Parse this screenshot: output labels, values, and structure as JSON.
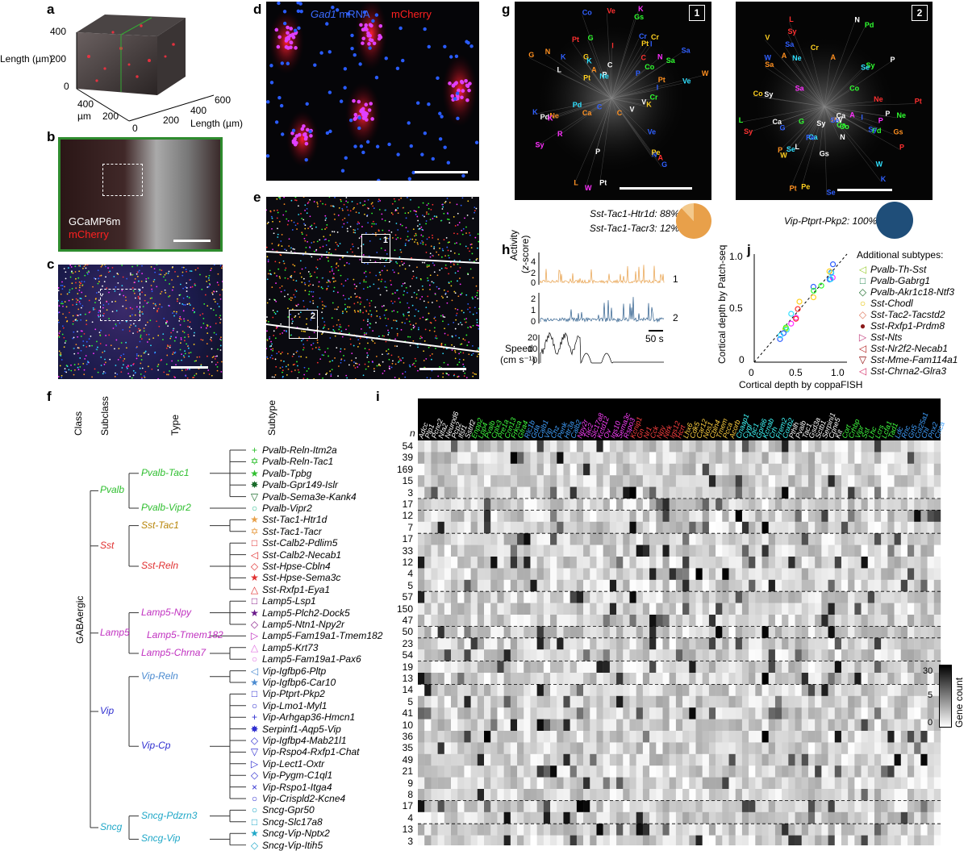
{
  "panels": {
    "a": {
      "label": "a",
      "y_axis": "Length (µm)",
      "y_ticks": [
        "400",
        "200",
        "0"
      ],
      "depth_ticks": [
        "400",
        "200",
        "0"
      ],
      "depth_unit": "µm",
      "x_ticks": [
        "200",
        "400",
        "600"
      ],
      "x_axis": "Length (µm)"
    },
    "b": {
      "label": "b",
      "legend_1": "GCaMP6m",
      "legend_2": "mCherry"
    },
    "c": {
      "label": "c"
    },
    "d": {
      "label": "d",
      "legend_1": "Gad1 mRNA",
      "legend_1_gene": "Gad1",
      "legend_1_rest": " mRNA",
      "legend_2": "mCherry"
    },
    "e": {
      "label": "e",
      "box_1": "1",
      "box_2": "2"
    },
    "g": {
      "label": "g",
      "box_1": "1",
      "box_2": "2",
      "caption_1a": "Sst-Tac1-Htr1d: 88%",
      "caption_1b": "Sst-Tac1-Tacr3: 12%",
      "caption_2": "Vip-Ptprt-Pkp2: 100%",
      "pie_1": {
        "fractions": [
          0.88,
          0.12
        ],
        "colors": [
          "#e8a04a",
          "#f3c98c"
        ]
      },
      "pie_2": {
        "fractions": [
          1.0
        ],
        "colors": [
          "#1f4e79"
        ]
      }
    },
    "h": {
      "label": "h",
      "ylabel_activity": "Activity",
      "ylabel_activity_unit": "(z-score)",
      "ylabel_speed": "Speed",
      "ylabel_speed_unit": "(cm s⁻¹)",
      "trace1_ticks": [
        "4",
        "2",
        "0"
      ],
      "trace2_ticks": [
        "2",
        "1",
        "0"
      ],
      "speed_ticks": [
        "20",
        "10",
        "0"
      ],
      "trace1_id": "1",
      "trace2_id": "2",
      "scalebar": "50 s",
      "trace1_color": "#e8a04a",
      "trace2_color": "#2a5b8a"
    },
    "j": {
      "label": "j",
      "xlabel": "Cortical depth by coppaFISH",
      "ylabel": "Cortical depth by Patch-seq",
      "x_ticks": [
        "0",
        "0.5",
        "1.0"
      ],
      "y_ticks": [
        "1.0",
        "0.5",
        "0"
      ],
      "legend_title": "Additional subtypes:",
      "legend": [
        {
          "marker": "◁",
          "color": "#9acd32",
          "name": "Pvalb-Th-Sst"
        },
        {
          "marker": "□",
          "color": "#2e8b57",
          "name": "Pvalb-Gabrg1"
        },
        {
          "marker": "◇",
          "color": "#1a6b2a",
          "name": "Pvalb-Akr1c18-Ntf3"
        },
        {
          "marker": "○",
          "color": "#e6c200",
          "name": "Sst-Chodl"
        },
        {
          "marker": "◇",
          "color": "#e07a5f",
          "name": "Sst-Tac2-Tacstd2"
        },
        {
          "marker": "●",
          "color": "#8b1a1a",
          "name": "Sst-Rxfp1-Prdm8"
        },
        {
          "marker": "▷",
          "color": "#c0397a",
          "name": "Sst-Nts"
        },
        {
          "marker": "◁",
          "color": "#b22222",
          "name": "Sst-Nr2f2-Necab1"
        },
        {
          "marker": "▽",
          "color": "#8b0000",
          "name": "Sst-Mme-Fam114a1"
        },
        {
          "marker": "◁",
          "color": "#d6336c",
          "name": "Sst-Chrna2-Glra3"
        }
      ]
    },
    "f": {
      "label": "f",
      "col_class": "Class",
      "col_subclass": "Subclass",
      "col_type": "Type",
      "col_subtype": "Subtype",
      "class_name": "GABAergic",
      "subclasses": [
        {
          "name": "Pvalb",
          "color": "#2fbf2f"
        },
        {
          "name": "Sst",
          "color": "#e03030"
        },
        {
          "name": "Lamp5",
          "color": "#c030c0"
        },
        {
          "name": "Vip",
          "color": "#3030d0"
        },
        {
          "name": "Sncg",
          "color": "#20a8c8"
        }
      ],
      "types": [
        {
          "name": "Pvalb-Tac1",
          "color": "#2fbf2f"
        },
        {
          "name": "Pvalb-Vipr2",
          "color": "#2fbf2f"
        },
        {
          "name": "Sst-Tac1",
          "color": "#b8860b"
        },
        {
          "name": "Sst-Reln",
          "color": "#e03030"
        },
        {
          "name": "Lamp5-Npy",
          "color": "#c030c0"
        },
        {
          "name": "Lamp5-Tmem182",
          "color": "#c030c0"
        },
        {
          "name": "Lamp5-Chrna7",
          "color": "#c030c0"
        },
        {
          "name": "Vip-Reln",
          "color": "#4a8ad0"
        },
        {
          "name": "Vip-Cp",
          "color": "#3030d0"
        },
        {
          "name": "Sncg-Pdzrn3",
          "color": "#20a8c8"
        },
        {
          "name": "Sncg-Vip",
          "color": "#20a8c8"
        }
      ],
      "subtypes": [
        {
          "marker": "+",
          "color": "#2fbf2f",
          "name": "Pvalb-Reln-Itm2a",
          "n": "54"
        },
        {
          "marker": "✡",
          "color": "#2fbf2f",
          "name": "Pvalb-Reln-Tac1",
          "n": "39"
        },
        {
          "marker": "★",
          "color": "#2fbf2f",
          "name": "Pvalb-Tpbg",
          "n": "169"
        },
        {
          "marker": "✸",
          "color": "#1a6b2a",
          "name": "Pvalb-Gpr149-Islr",
          "n": "15"
        },
        {
          "marker": "▽",
          "color": "#1a6b2a",
          "name": "Pvalb-Sema3e-Kank4",
          "n": "3"
        },
        {
          "marker": "○",
          "color": "#2fbf8f",
          "name": "Pvalb-Vipr2",
          "n": "17"
        },
        {
          "marker": "★",
          "color": "#e8a04a",
          "name": "Sst-Tac1-Htr1d",
          "n": "12"
        },
        {
          "marker": "✡",
          "color": "#e8a04a",
          "name": "Sst-Tac1-Tacr",
          "n": "7"
        },
        {
          "marker": "□",
          "color": "#e03030",
          "name": "Sst-Calb2-Pdlim5",
          "n": "17"
        },
        {
          "marker": "◁",
          "color": "#e03030",
          "name": "Sst-Calb2-Necab1",
          "n": "33"
        },
        {
          "marker": "◇",
          "color": "#e03030",
          "name": "Sst-Hpse-Cbln4",
          "n": "12"
        },
        {
          "marker": "★",
          "color": "#e03030",
          "name": "Sst-Hpse-Sema3c",
          "n": "4"
        },
        {
          "marker": "△",
          "color": "#e03030",
          "name": "Sst-Rxfp1-Eya1",
          "n": "5"
        },
        {
          "marker": "□",
          "color": "#8a208a",
          "name": "Lamp5-Lsp1",
          "n": "57"
        },
        {
          "marker": "★",
          "color": "#6a1a8a",
          "name": "Lamp5-Plch2-Dock5",
          "n": "150"
        },
        {
          "marker": "◇",
          "color": "#8a208a",
          "name": "Lamp5-Ntn1-Npy2r",
          "n": "47"
        },
        {
          "marker": "▷",
          "color": "#c030c0",
          "name": "Lamp5-Fam19a1-Tmem182",
          "n": "50"
        },
        {
          "marker": "△",
          "color": "#e070e0",
          "name": "Lamp5-Krt73",
          "n": "23"
        },
        {
          "marker": "○",
          "color": "#e070e0",
          "name": "Lamp5-Fam19a1-Pax6",
          "n": "54"
        },
        {
          "marker": "◁",
          "color": "#4a8ad0",
          "name": "Vip-Igfbp6-Pltp",
          "n": "19"
        },
        {
          "marker": "★",
          "color": "#4a8ad0",
          "name": "Vip-Igfbp6-Car10",
          "n": "13"
        },
        {
          "marker": "□",
          "color": "#3030d0",
          "name": "Vip-Ptprt-Pkp2",
          "n": "14"
        },
        {
          "marker": "○",
          "color": "#3030d0",
          "name": "Vip-Lmo1-Myl1",
          "n": "5"
        },
        {
          "marker": "+",
          "color": "#3030d0",
          "name": "Vip-Arhgap36-Hmcn1",
          "n": "41"
        },
        {
          "marker": "✸",
          "color": "#3030d0",
          "name": "Serpinf1-Aqp5-Vip",
          "n": "10"
        },
        {
          "marker": "◇",
          "color": "#3030d0",
          "name": "Vip-Igfbp4-Mab21l1",
          "n": "36"
        },
        {
          "marker": "▽",
          "color": "#3030d0",
          "name": "Vip-Rspo4-Rxfp1-Chat",
          "n": "35"
        },
        {
          "marker": "▷",
          "color": "#3030d0",
          "name": "Vip-Lect1-Oxtr",
          "n": "49"
        },
        {
          "marker": "◇",
          "color": "#3030d0",
          "name": "Vip-Pygm-C1ql1",
          "n": "21"
        },
        {
          "marker": "×",
          "color": "#3030d0",
          "name": "Vip-Rspo1-Itga4",
          "n": "9"
        },
        {
          "marker": "○",
          "color": "#3030d0",
          "name": "Vip-Crispld2-Kcne4",
          "n": "8"
        },
        {
          "marker": "○",
          "color": "#20a8c8",
          "name": "Sncg-Gpr50",
          "n": "17"
        },
        {
          "marker": "□",
          "color": "#20a8c8",
          "name": "Sncg-Slc17a8",
          "n": "4"
        },
        {
          "marker": "★",
          "color": "#20a8c8",
          "name": "Sncg-Vip-Nptx2",
          "n": "13"
        },
        {
          "marker": "◇",
          "color": "#20a8c8",
          "name": "Sncg-Vip-Itih5",
          "n": "3"
        }
      ]
    },
    "i": {
      "label": "i",
      "n_header": "n",
      "colorbar_label": "Gene count",
      "colorbar_ticks": [
        "30",
        "5",
        "0"
      ],
      "genes": [
        "Adcc",
        "Plp1",
        "Pcnc2",
        "Nfa2",
        "Neurod6",
        "Pcp2",
        "Ifsf1",
        "Sstrf2",
        "Enpp2",
        "Lpp4",
        "Pvalb",
        "Cplx3",
        "Pre1a",
        "Cnn13",
        "Frkca",
        "Gfra4",
        "Rlc1b",
        "Gda",
        "Calb1",
        "Vip",
        "Chz",
        "Penk",
        "Htr3a",
        "Calb2",
        "Npy2r",
        "Tac2",
        "Slc17a8",
        "Kctd12",
        "Ov",
        "Igs10",
        "Sema3c",
        "Rspo3",
        "Kcnip1",
        "Gn",
        "Nr1",
        "Cck",
        "Npy",
        "Ntrk",
        "Igs12",
        "Hcrt",
        "Lhx6",
        "Cdk5",
        "Car12",
        "Nos1",
        "Cbln4",
        "Tmem",
        "Pcca",
        "Acorb",
        "Cnaap1",
        "Cygl",
        "Tac1",
        "Gpr86",
        "Kcnab",
        "Crh",
        "Frem2",
        "Coxb2",
        "Pthlh",
        "Pvalb",
        "Tac1",
        "Gsd3a",
        "Sctb1",
        "Serpini1",
        "Cpne5",
        "Kit",
        "Cort",
        "Crhbp",
        "Vipr",
        "Sst",
        "Lhc",
        "Lcrs",
        "Lcfa1",
        "Tad1",
        "Ldc",
        "Rnc",
        "Gn5",
        "Col25a1",
        "Chl",
        "Pnx2",
        "Cnca"
      ],
      "gene_colors_sample": [
        "#000",
        "#fff"
      ]
    }
  }
}
